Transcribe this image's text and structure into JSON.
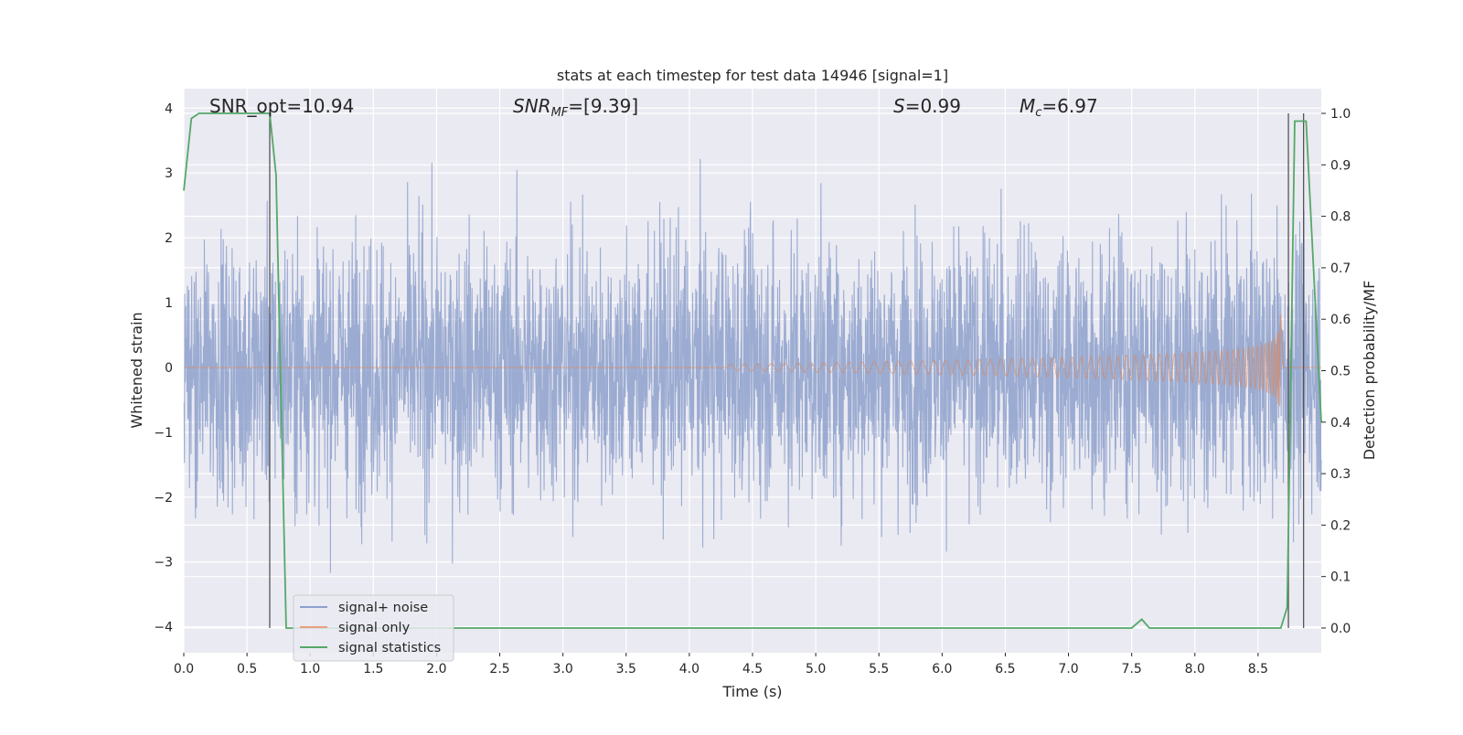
{
  "chart_data": {
    "type": "line",
    "title": "stats at each timestep for test data 14946 [signal=1]",
    "xlabel": "Time (s)",
    "ylabel_left": "Whitened strain",
    "ylabel_right": "Detection probability/MF",
    "xlim": [
      0,
      9.0
    ],
    "ylim_left": [
      -4.4,
      4.3
    ],
    "ylim_right": [
      -0.048,
      1.048
    ],
    "xticks": [
      "0.0",
      "0.5",
      "1.0",
      "1.5",
      "2.0",
      "2.5",
      "3.0",
      "3.5",
      "4.0",
      "4.5",
      "5.0",
      "5.5",
      "6.0",
      "6.5",
      "7.0",
      "7.5",
      "8.0",
      "8.5"
    ],
    "yticks_left": [
      "4",
      "3",
      "2",
      "1",
      "0",
      "−1",
      "−2",
      "−3",
      "−4"
    ],
    "yticks_right": [
      "1.0",
      "0.9",
      "0.8",
      "0.7",
      "0.6",
      "0.5",
      "0.4",
      "0.3",
      "0.2",
      "0.1",
      "0.0"
    ],
    "annotations": [
      {
        "text": "SNR_opt=10.94",
        "x": 0.2
      },
      {
        "text_parts": [
          "SNR",
          "MF",
          "=[9.39]"
        ],
        "x": 2.6
      },
      {
        "text_parts": [
          "S",
          "=0.99"
        ],
        "x": 5.6
      },
      {
        "text_parts": [
          "M",
          "c",
          "=6.97"
        ],
        "x": 6.6
      }
    ],
    "legend": {
      "placement": "lower-left",
      "entries": [
        {
          "label": "signal+ noise",
          "color": "#8da0cb"
        },
        {
          "label": "signal only",
          "color": "#e8a07e"
        },
        {
          "label": "signal statistics",
          "color": "#55a868"
        }
      ]
    },
    "series": [
      {
        "name": "signal+ noise",
        "axis": "left",
        "kind": "noise",
        "x_range": [
          0,
          9.0
        ],
        "std": 1.0,
        "y_min_shown": -4.0,
        "y_max_shown": 4.0
      },
      {
        "name": "signal only",
        "axis": "left",
        "kind": "chirp",
        "start": 4.3,
        "end": 8.68,
        "start_amplitude": 0.05,
        "amplitude_at_8_5": 0.45,
        "peak_amplitude": 1.3
      },
      {
        "name": "signal statistics",
        "axis": "right",
        "x": [
          0.0,
          0.06,
          0.12,
          0.3,
          0.5,
          0.68,
          0.73,
          0.81,
          1.0,
          3.0,
          5.0,
          7.0,
          7.5,
          7.58,
          7.64,
          8.0,
          8.5,
          8.68,
          8.73,
          8.75,
          8.79,
          8.88,
          9.0
        ],
        "y": [
          0.85,
          0.99,
          1.0,
          1.0,
          1.0,
          1.0,
          0.88,
          0.0,
          0.0,
          0.0,
          0.0,
          0.0,
          0.0,
          0.017,
          0.0,
          0.0,
          0.0,
          0.0,
          0.04,
          0.34,
          0.985,
          0.985,
          0.4
        ]
      }
    ],
    "vertical_lines_x": [
      0.68,
      8.74,
      8.86
    ],
    "grid": true
  },
  "colors": {
    "plot_background": "#eaeaf2",
    "grid": "#ffffff",
    "noise": "#8da0cb",
    "signal": "#dd8452",
    "statistics": "#55a868",
    "vlines": "#555555"
  }
}
